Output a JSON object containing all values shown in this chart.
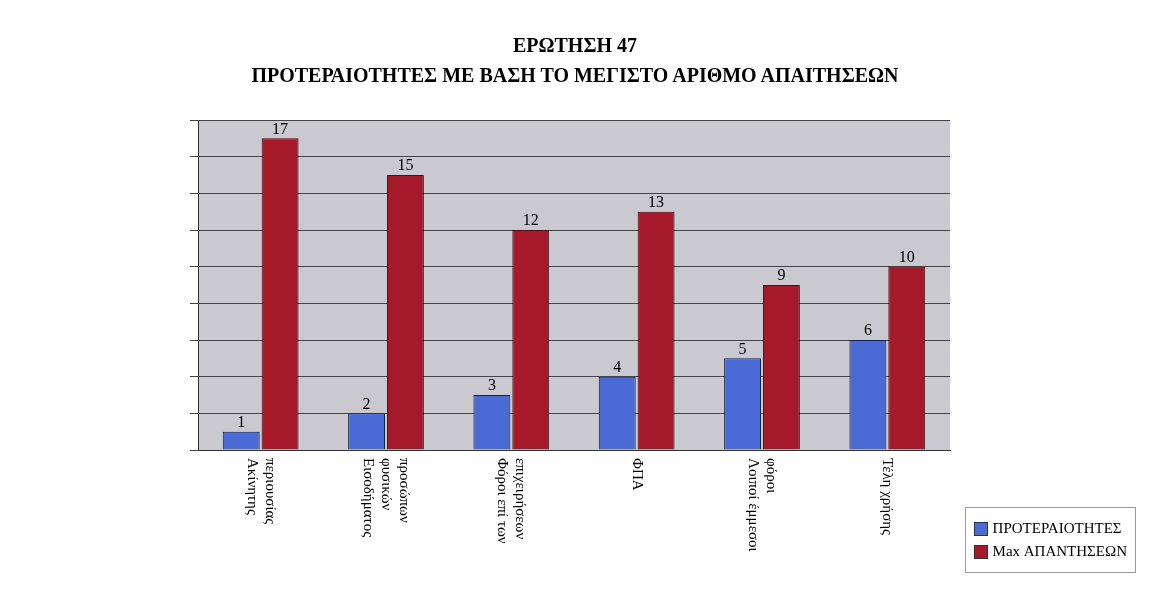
{
  "chart_data": {
    "type": "bar",
    "title": "ΕΡΩΤΗΣΗ 47",
    "subtitle": "ΠΡΟΤΕΡΑΙΟΤΗΤΕΣ ΜΕ ΒΑΣΗ ΤΟ ΜΕΓΙΣΤΟ ΑΡΙΘΜΟ ΑΠΑΙΤΗΣΕΩΝ",
    "categories": [
      "Ακίνητης περιουσίας",
      "Εισοδήματος φυσικών προσώπων",
      "Φόροι επί των επιχειρήσεων",
      "ΦΠΑ",
      "Λοιποί έμμεσοι φόροι",
      "Τέλη χρήσης"
    ],
    "series": [
      {
        "name": "ΠΡΟΤΕΡΑΙΟΤΗΤΕΣ",
        "color": "#4a6ad6",
        "values": [
          1,
          2,
          3,
          4,
          5,
          6
        ]
      },
      {
        "name": "Max ΑΠΑΝΤΗΣΕΩΝ",
        "color": "#a5192a",
        "values": [
          17,
          15,
          12,
          13,
          9,
          10
        ]
      }
    ],
    "data_labels": true,
    "grid": "y",
    "tick_labels": "x",
    "legend": "bottom right"
  }
}
